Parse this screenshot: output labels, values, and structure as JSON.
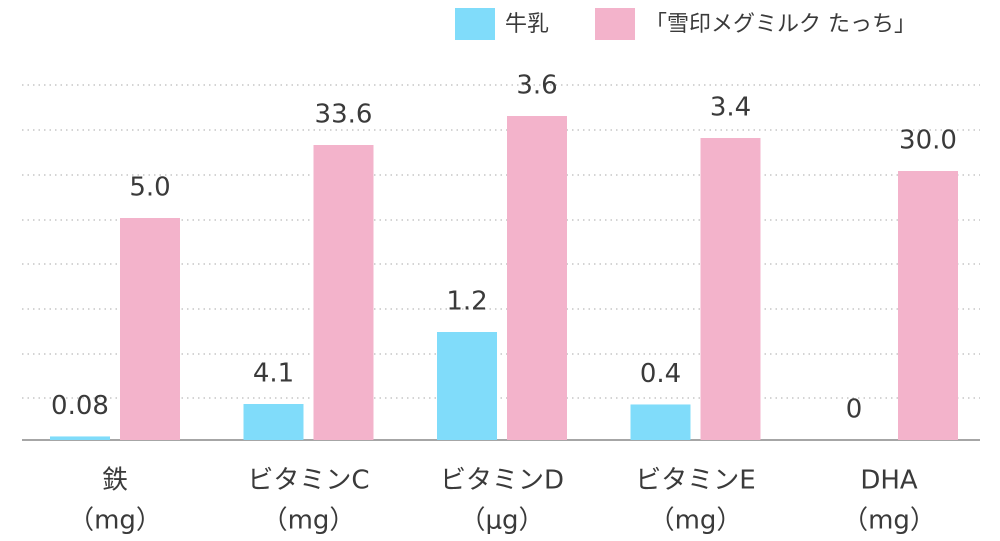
{
  "chart_data": {
    "type": "bar",
    "categories": [
      "鉄",
      "ビタミンC",
      "ビタミンD",
      "ビタミンE",
      "DHA"
    ],
    "units": [
      "（mg）",
      "（mg）",
      "（μg）",
      "（mg）",
      "（mg）"
    ],
    "series": [
      {
        "name": "牛乳",
        "color": "#80dcfa",
        "values": [
          0.08,
          4.1,
          1.2,
          0.4,
          0
        ],
        "value_labels": [
          "0.08",
          "4.1",
          "1.2",
          "0.4",
          "0"
        ]
      },
      {
        "name": "「雪印メグミルク たっち」",
        "color": "#f3b3cb",
        "values": [
          5.0,
          33.6,
          3.6,
          3.4,
          30.0
        ],
        "value_labels": [
          "5.0",
          "33.6",
          "3.6",
          "3.4",
          "30.0"
        ]
      }
    ],
    "legend": "top-right"
  }
}
